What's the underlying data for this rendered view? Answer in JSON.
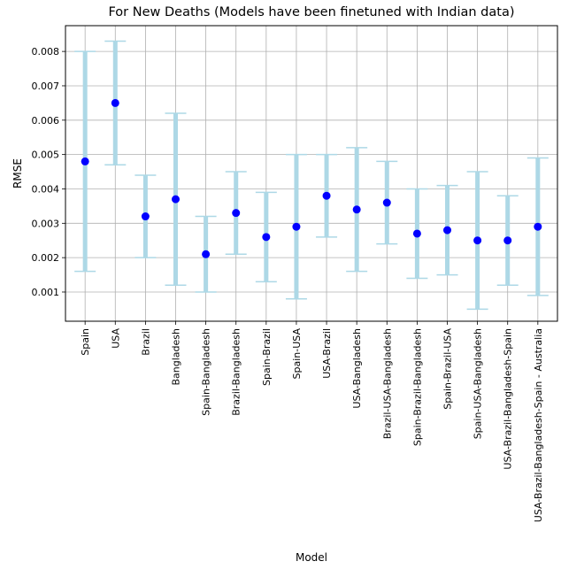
{
  "chart_data": {
    "type": "scatter",
    "title": "For New Deaths (Models have been finetuned with Indian data)",
    "xlabel": "Model",
    "ylabel": "RMSE",
    "categories": [
      "Spain",
      "USA",
      "Brazil",
      "Bangladesh",
      "Spain-Bangladesh",
      "Brazil-Bangladesh",
      "Spain-Brazil",
      "Spain-USA",
      "USA-Brazil",
      "USA-Bangladesh",
      "Brazil-USA-Bangladesh",
      "Spain-Brazil-Bangladesh",
      "Spain-Brazil-USA",
      "Spain-USA-Bangladesh",
      "USA-Brazil-Bangladesh-Spain",
      "USA-Brazil-Bangladesh-Spain - Australia"
    ],
    "values": [
      0.0048,
      0.0065,
      0.0032,
      0.0037,
      0.0021,
      0.0033,
      0.0026,
      0.0029,
      0.0038,
      0.0034,
      0.0036,
      0.0027,
      0.0028,
      0.0025,
      0.0025,
      0.0029
    ],
    "lower": [
      0.0016,
      0.0047,
      0.002,
      0.0012,
      0.001,
      0.0021,
      0.0013,
      0.0008,
      0.0026,
      0.0016,
      0.0024,
      0.0014,
      0.0015,
      0.0005,
      0.0012,
      0.0009
    ],
    "upper": [
      0.008,
      0.0083,
      0.0044,
      0.0062,
      0.0032,
      0.0045,
      0.0039,
      0.005,
      0.005,
      0.0052,
      0.0048,
      0.004,
      0.0041,
      0.0045,
      0.0038,
      0.0049
    ],
    "yticks": [
      "0.001",
      "0.002",
      "0.003",
      "0.004",
      "0.005",
      "0.006",
      "0.007",
      "0.008"
    ],
    "ytick_values": [
      0.001,
      0.002,
      0.003,
      0.004,
      0.005,
      0.006,
      0.007,
      0.008
    ],
    "ylim": [
      0.00015,
      0.00875
    ],
    "grid": true,
    "colors": {
      "point": "#0000ff",
      "errorbar": "#add8e6",
      "grid": "#b0b0b0"
    }
  }
}
